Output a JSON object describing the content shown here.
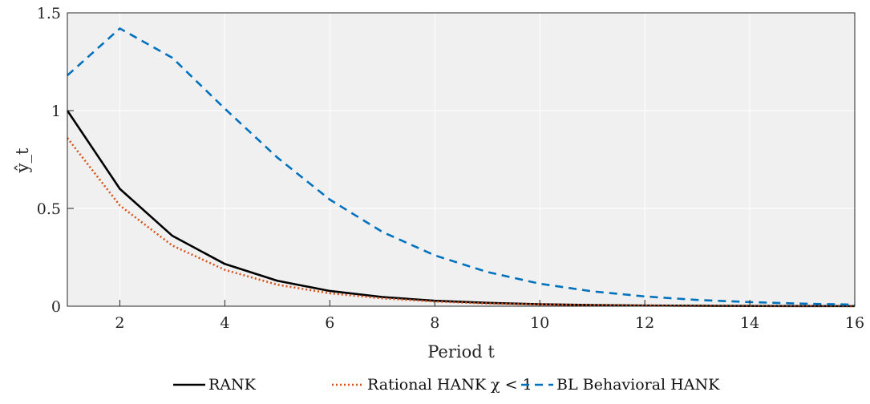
{
  "chart_data": {
    "type": "line",
    "x": [
      1,
      2,
      3,
      4,
      5,
      6,
      7,
      8,
      9,
      10,
      11,
      12,
      13,
      14,
      15,
      16
    ],
    "series": [
      {
        "name": "RANK",
        "color": "#000000",
        "dash": "solid",
        "values": [
          1.0,
          0.6,
          0.36,
          0.216,
          0.13,
          0.078,
          0.047,
          0.028,
          0.017,
          0.01,
          0.006,
          0.0036,
          0.0022,
          0.0013,
          0.0008,
          0.0005
        ]
      },
      {
        "name": "Rational HANK χ < 1",
        "color": "#D95319",
        "dash": "dotted",
        "values": [
          0.86,
          0.515,
          0.31,
          0.186,
          0.11,
          0.066,
          0.04,
          0.024,
          0.014,
          0.009,
          0.005,
          0.003,
          0.002,
          0.0011,
          0.0007,
          0.0004
        ]
      },
      {
        "name": "BL Behavioral HANK",
        "color": "#0072BD",
        "dash": "dashed",
        "values": [
          1.18,
          1.42,
          1.27,
          1.01,
          0.76,
          0.545,
          0.38,
          0.26,
          0.175,
          0.115,
          0.076,
          0.05,
          0.032,
          0.021,
          0.013,
          0.008
        ]
      }
    ],
    "xlabel": "Period t",
    "ylabel": "ŷ_t",
    "xlim": [
      1,
      16
    ],
    "ylim": [
      0,
      1.5
    ],
    "xticks": [
      2,
      4,
      6,
      8,
      10,
      12,
      14,
      16
    ],
    "xtick_labels": [
      "2",
      "4",
      "6",
      "8",
      "10",
      "12",
      "14",
      "16"
    ],
    "yticks": [
      0,
      0.5,
      1,
      1.5
    ],
    "ytick_labels": [
      "0",
      "0.5",
      "1",
      "1.5"
    ],
    "grid": true,
    "legend_position": "bottom, horizontal",
    "plot_background": "#F0F0F0"
  }
}
